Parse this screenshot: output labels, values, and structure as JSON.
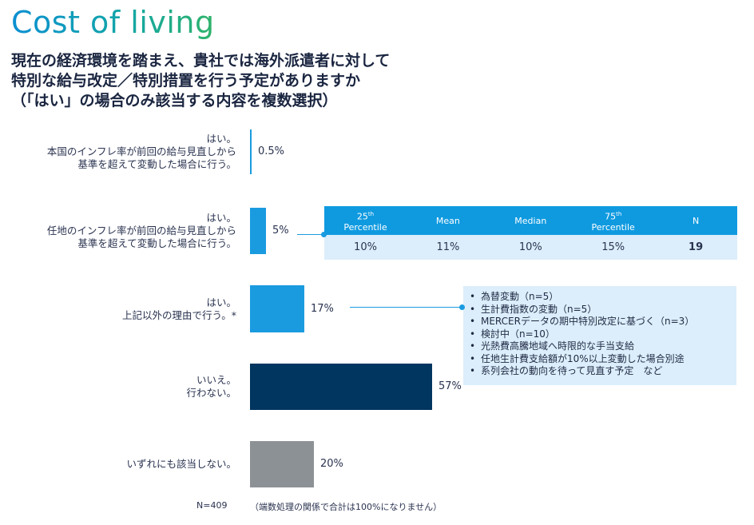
{
  "title": "Cost of living",
  "subtitle_lines": [
    "現在の経済環境を踏まえ、貴社では海外派遣者に対して",
    "特別な給与改定／特別措置を行う予定がありますか",
    "（「はい」の場合のみ該当する内容を複数選択）"
  ],
  "chart_data": {
    "type": "bar",
    "orientation": "horizontal",
    "categories": [
      [
        "はい。",
        "本国のインフレ率が前回の給与見直しから",
        "基準を超えて変動した場合に行う。"
      ],
      [
        "はい。",
        "任地のインフレ率が前回の給与見直しから",
        "基準を超えて変動した場合に行う。"
      ],
      [
        "はい。",
        "上記以外の理由で行う。*"
      ],
      [
        "いいえ。",
        "行わない。"
      ],
      [
        "いずれにも該当しない。"
      ]
    ],
    "values": [
      0.5,
      5,
      17,
      57,
      20
    ],
    "value_labels": [
      "0.5%",
      "5%",
      "17%",
      "57%",
      "20%"
    ],
    "bar_colors": [
      "#1a9be0",
      "#1a9be0",
      "#1a9be0",
      "#003660",
      "#8c9196"
    ],
    "xlim": [
      0,
      100
    ]
  },
  "stats_table": {
    "headers": [
      {
        "base": "25",
        "sup": "th",
        "rest": "Percentile"
      },
      {
        "base": "Mean",
        "sup": "",
        "rest": ""
      },
      {
        "base": "Median",
        "sup": "",
        "rest": ""
      },
      {
        "base": "75",
        "sup": "th",
        "rest": "Percentile"
      },
      {
        "base": "N",
        "sup": "",
        "rest": ""
      }
    ],
    "values": [
      "10%",
      "11%",
      "10%",
      "15%",
      "19"
    ]
  },
  "reasons": [
    "為替変動（n=5）",
    "生計費指数の変動（n=5）",
    "MERCERデータの期中特別改定に基づく（n=3）",
    "検討中（n=10）",
    "光熱費高騰地域へ時限的な手当支給",
    "任地生計費支給額が10%以上変動した場合別途",
    "系列会社の動向を待って見直す予定　など"
  ],
  "footer": {
    "n": "N=409",
    "note": "（端数処理の関係で合計は100%になりません）"
  },
  "colors": {
    "light_blue": "#1a9be0",
    "navy": "#003660",
    "gray": "#8c9196",
    "panel_bg": "#dceefb",
    "panel_head": "#0f9ae0"
  }
}
